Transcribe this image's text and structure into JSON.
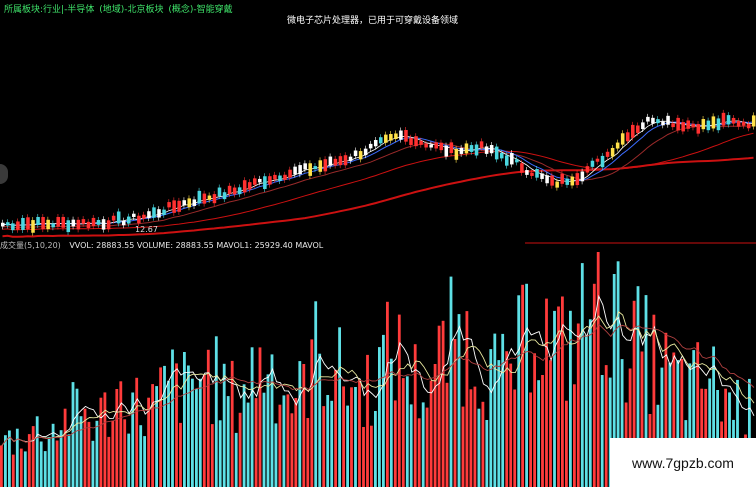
{
  "header": {
    "blocks": [
      "所属板块:行业|-半导体",
      "(地域)-北京板块",
      "(概念)-智能穿戴"
    ]
  },
  "banner_text": "微电子芯片处理器，已用于可穿戴设备领域",
  "price_chart": {
    "low_label": "12.67"
  },
  "volume_header": {
    "indicator": "成交量(5,10,20)",
    "vvol": "VVOL: 28883.55",
    "volume": "VOLUME: 28883.55",
    "mavol1": "MAVOL1: 25929.40",
    "mavol2": "MAVOL"
  },
  "watermark": "www.7gpzb.com",
  "colors": {
    "up": "#ff3b3b",
    "down": "#5ee0e6",
    "candle_up": "#ff3030",
    "candle_down": "#4ad7e0",
    "yellow": "#ffe14a",
    "ma_long": "#cc1111",
    "ma_blue": "#3c6cff",
    "text_green": "#3fe36a"
  },
  "chart_data": [
    {
      "type": "candlestick",
      "title": "",
      "annotations": [
        "12.67"
      ],
      "trend_path_fraction": [
        0.03,
        0.04,
        0.035,
        0.045,
        0.05,
        0.07,
        0.12,
        0.2,
        0.26,
        0.3,
        0.38,
        0.45,
        0.5,
        0.55,
        0.62,
        0.72,
        0.8,
        0.72,
        0.66,
        0.7,
        0.62,
        0.5,
        0.38,
        0.45,
        0.6,
        0.82,
        0.95,
        0.9,
        0.88,
        0.92,
        0.9
      ]
    },
    {
      "type": "bar",
      "title": "成交量(5,10,20)",
      "series": [
        {
          "name": "VVOL",
          "last": 28883.55
        },
        {
          "name": "MAVOL1",
          "last": 25929.4
        }
      ],
      "relative_volume": [
        0.22,
        0.26,
        0.3,
        0.28,
        0.35,
        0.4,
        0.33,
        0.42,
        0.5,
        0.38,
        0.45,
        0.55,
        0.48,
        0.6,
        0.52,
        0.44,
        0.58,
        0.66,
        0.5,
        0.46,
        0.7,
        0.62,
        0.55,
        0.48,
        0.6,
        0.72,
        0.58,
        0.5,
        0.64,
        0.8,
        0.7,
        0.62,
        0.55,
        0.68,
        0.9,
        0.76,
        0.7,
        0.84,
        1.0,
        0.86,
        0.78,
        0.7,
        0.62,
        0.55,
        0.5,
        0.58,
        0.48,
        0.42,
        0.38
      ]
    }
  ]
}
